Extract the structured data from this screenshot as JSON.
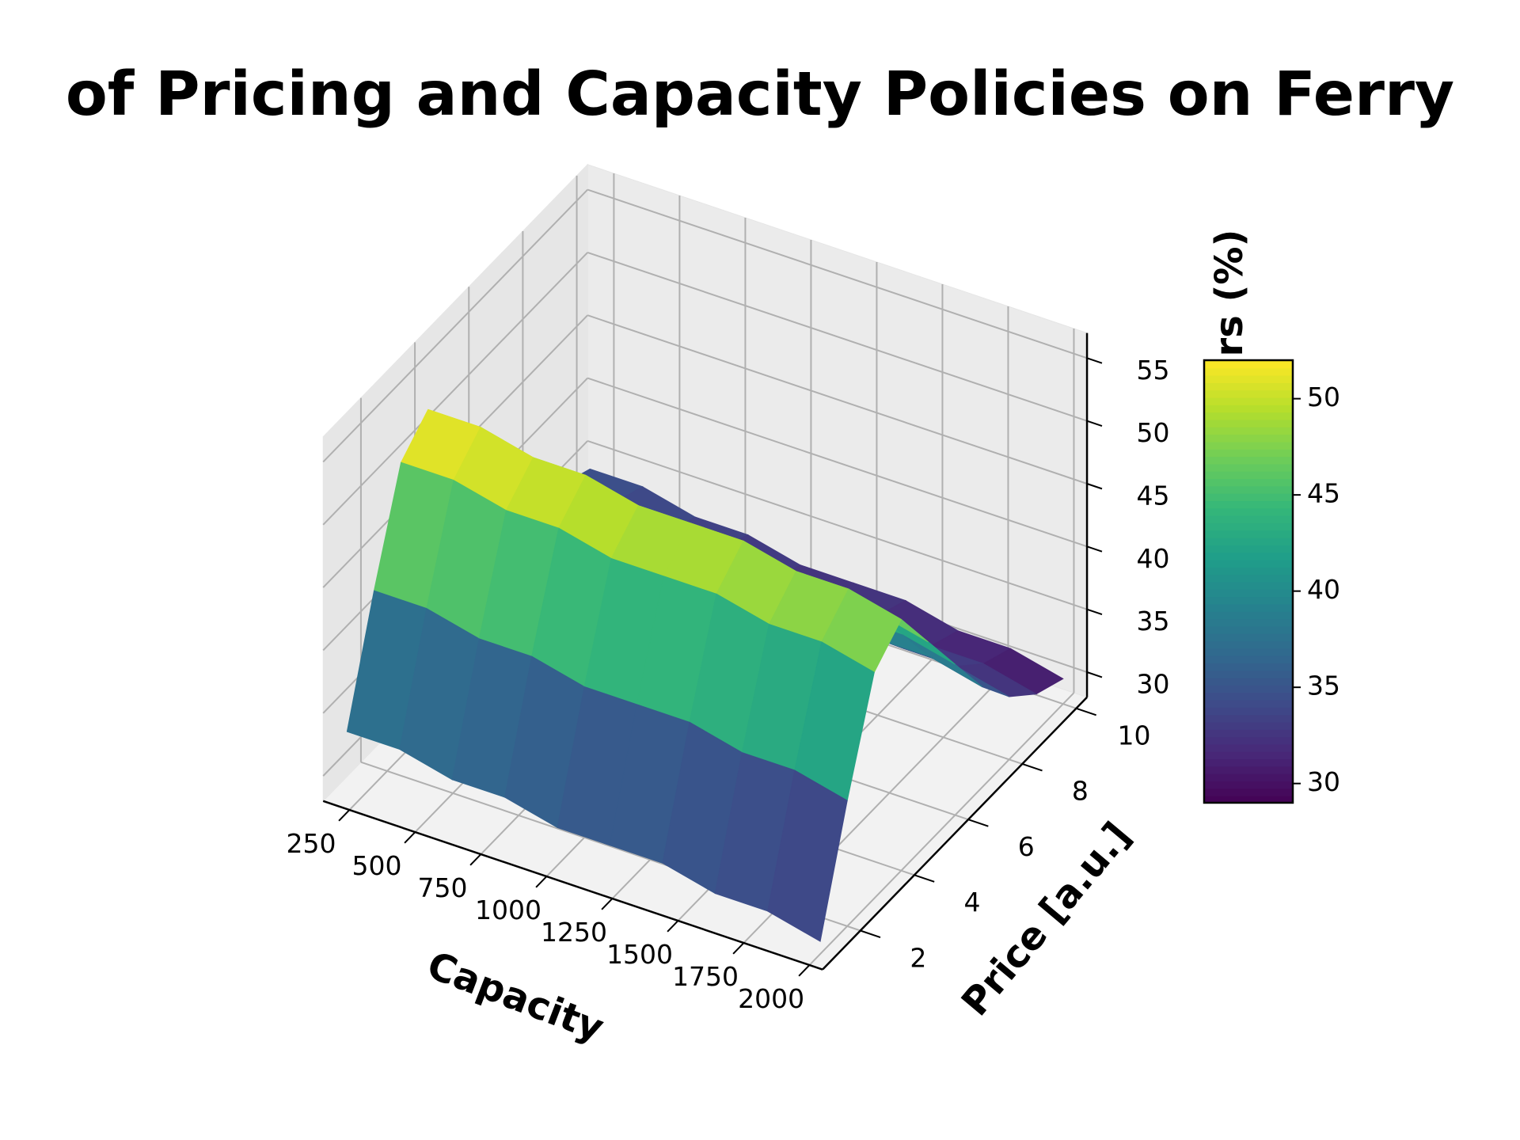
{
  "chart_data": {
    "type": "surface",
    "title": "of Pricing and Capacity Policies on Ferry",
    "xlabel": "Capacity",
    "ylabel": "Price [a.u.]",
    "colorbar_label": "rs (%)",
    "x": [
      200,
      400,
      600,
      800,
      1000,
      1200,
      1400,
      1600,
      1800,
      2000
    ],
    "y": [
      1,
      2,
      3,
      4,
      5,
      6,
      7,
      8,
      9,
      10
    ],
    "z": [
      [
        33,
        33,
        32,
        32,
        31,
        31,
        31,
        30,
        30,
        29
      ],
      [
        42,
        42,
        41,
        41,
        40,
        40,
        40,
        39,
        39,
        38
      ],
      [
        50,
        50,
        49,
        49,
        48,
        48,
        48,
        47,
        47,
        46
      ],
      [
        52,
        52,
        51,
        51,
        50,
        50,
        50,
        49,
        49,
        48
      ],
      [
        48,
        48,
        47,
        47,
        46,
        46,
        46,
        45,
        45,
        44
      ],
      [
        44,
        44,
        43,
        43,
        42,
        42,
        42,
        41,
        41,
        40
      ],
      [
        40,
        40,
        39,
        39,
        38,
        38,
        38,
        37,
        37,
        36
      ],
      [
        37,
        37,
        36,
        36,
        35,
        35,
        35,
        34,
        34,
        33
      ],
      [
        35,
        35,
        34,
        34,
        33,
        33,
        33,
        32,
        32,
        31
      ],
      [
        34,
        34,
        33,
        33,
        32,
        32,
        32,
        31,
        31,
        30
      ]
    ],
    "colormap": "viridis",
    "xlim": [
      150,
      2050
    ],
    "xticks": [
      250,
      500,
      750,
      1000,
      1250,
      1500,
      1750,
      2000
    ],
    "ylim": [
      0.6,
      10.4
    ],
    "yticks": [
      2,
      4,
      6,
      8,
      10
    ],
    "zlim": [
      28,
      57
    ],
    "zticks": [
      30,
      35,
      40,
      45,
      50,
      55
    ],
    "clim": [
      29,
      52
    ],
    "cticks": [
      30,
      35,
      40,
      45,
      50
    ],
    "grid": true
  }
}
